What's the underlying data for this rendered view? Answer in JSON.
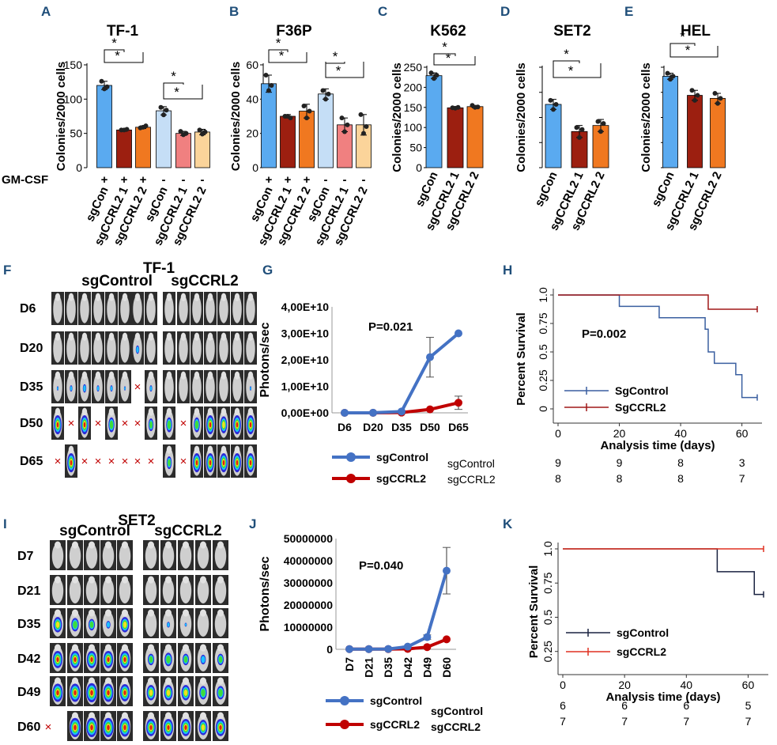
{
  "chart_data": [
    {
      "panel": "A",
      "type": "bar",
      "title": "TF-1",
      "ylabel": "Colonies/2000 cells",
      "ylim": [
        0,
        150
      ],
      "yticks": [
        "0",
        "50",
        "100",
        "150"
      ],
      "categories": [
        "sgCon",
        "sgCCRL2 1",
        "sgCCRL2 2",
        "sgCon",
        "sgCCRL2 1",
        "sgCCRL2 2"
      ],
      "condition_label": "GM-CSF",
      "condition": [
        "+",
        "+",
        "+",
        "-",
        "-",
        "-"
      ],
      "values": [
        120,
        55,
        59,
        83,
        50,
        52
      ],
      "errors": [
        6,
        2,
        2,
        6,
        3,
        4
      ],
      "points": [
        [
          126,
          115,
          118
        ],
        [
          55,
          55,
          56
        ],
        [
          58,
          59,
          61
        ],
        [
          88,
          77,
          84
        ],
        [
          53,
          48,
          50
        ],
        [
          55,
          49,
          52
        ]
      ],
      "colors": [
        "#5aaaf0",
        "#9c1f10",
        "#f07820",
        "#c5def6",
        "#f08080",
        "#fbd49a"
      ],
      "significance": [
        "*",
        "*",
        "*",
        "*"
      ]
    },
    {
      "panel": "B",
      "type": "bar",
      "title": "F36P",
      "ylabel": "Colonies/2000 cells",
      "ylim": [
        0,
        60
      ],
      "yticks": [
        "0",
        "20",
        "40",
        "60"
      ],
      "categories": [
        "sgCon",
        "sgCCRL2 1",
        "sgCCRL2 2",
        "sgCon",
        "sgCCRL2 1",
        "sgCCRL2 2"
      ],
      "condition": [
        "+",
        "+",
        "+",
        "-",
        "-",
        "-"
      ],
      "values": [
        49,
        30,
        33,
        43,
        25,
        25
      ],
      "errors": [
        5,
        1,
        4,
        3,
        4,
        6
      ],
      "points": [
        [
          54,
          45,
          48
        ],
        [
          30,
          30,
          29
        ],
        [
          36,
          29,
          33
        ],
        [
          45,
          40,
          43
        ],
        [
          29,
          21,
          25
        ],
        [
          31,
          20,
          24
        ]
      ],
      "colors": [
        "#5aaaf0",
        "#9c1f10",
        "#f07820",
        "#c5def6",
        "#f08080",
        "#fbd49a"
      ],
      "significance": [
        "*",
        "*",
        "*",
        "*"
      ]
    },
    {
      "panel": "C",
      "type": "bar",
      "title": "K562",
      "ylabel": "Colonies/2000 cells",
      "ylim": [
        0,
        250
      ],
      "yticks": [
        "0",
        "50",
        "100",
        "150",
        "200",
        "250"
      ],
      "categories": [
        "sgCon",
        "sgCCRL2 1",
        "sgCCRL2 2"
      ],
      "values": [
        229,
        149,
        152
      ],
      "errors": [
        7,
        2,
        3
      ],
      "points": [
        [
          236,
          222,
          230
        ],
        [
          149,
          148,
          150
        ],
        [
          155,
          150,
          151
        ]
      ],
      "colors": [
        "#5aaaf0",
        "#9c1f10",
        "#f07820"
      ],
      "significance": [
        "*",
        "*"
      ]
    },
    {
      "panel": "D",
      "type": "bar",
      "title": "SET2",
      "ylabel": "Colonies/2000 cells",
      "ylim": [
        0,
        100
      ],
      "categories": [
        "sgCon",
        "sgCCRL2 1",
        "sgCCRL2 2"
      ],
      "values": [
        63,
        36,
        42
      ],
      "errors": [
        5,
        6,
        6
      ],
      "points": [
        [
          67,
          58,
          63
        ],
        [
          40,
          30,
          38
        ],
        [
          46,
          36,
          44
        ]
      ],
      "colors": [
        "#5aaaf0",
        "#9c1f10",
        "#f07820"
      ],
      "significance": [
        "*",
        "*"
      ]
    },
    {
      "panel": "E",
      "type": "bar",
      "title": "HEL",
      "ylabel": "Colonies/2000 cells",
      "ylim": [
        0,
        100
      ],
      "categories": [
        "sgCon",
        "sgCCRL2 1",
        "sgCCRL2 2"
      ],
      "values": [
        91,
        72,
        69
      ],
      "errors": [
        3,
        5,
        5
      ],
      "points": [
        [
          94,
          88,
          91
        ],
        [
          77,
          67,
          72
        ],
        [
          74,
          64,
          69
        ]
      ],
      "colors": [
        "#5aaaf0",
        "#9c1f10",
        "#f07820"
      ],
      "significance": [
        "*",
        "*"
      ]
    },
    {
      "panel": "F",
      "type": "image-grid",
      "title": "TF-1",
      "groups": [
        "sgControl",
        "sgCCRL2"
      ],
      "rows": [
        "D6",
        "D20",
        "D35",
        "D50",
        "D65"
      ]
    },
    {
      "panel": "G",
      "type": "line",
      "ylabel": "Photons/sec",
      "x": [
        "D6",
        "D20",
        "D35",
        "D50",
        "D65"
      ],
      "ylim": [
        0,
        40000000000
      ],
      "yticks": [
        "0,00E+00",
        "1,00E+10",
        "2,00E+10",
        "3,00E+10",
        "4,00E+10"
      ],
      "series": [
        {
          "name": "sgControl",
          "color": "#4472c4",
          "values": [
            10000000,
            20000000,
            500000000,
            21000000000,
            30000000000
          ],
          "errors": [
            0,
            0,
            0,
            7500000000,
            0
          ]
        },
        {
          "name": "sgCCRL2",
          "color": "#c00000",
          "values": [
            5000000,
            10000000,
            100000000,
            1300000000,
            3800000000
          ],
          "errors": [
            0,
            0,
            0,
            0,
            2500000000
          ]
        }
      ],
      "annotation": "P=0.021"
    },
    {
      "panel": "H",
      "type": "line",
      "ylabel": "Percent Survival",
      "xlabel": "Analysis time (days)",
      "xlim": [
        0,
        65
      ],
      "ylim": [
        0,
        1
      ],
      "xticks": [
        "0",
        "20",
        "40",
        "60"
      ],
      "yticks": [
        "0",
        "0.25",
        "0.5",
        "0.75",
        "1.0"
      ],
      "series": [
        {
          "name": "SgControl",
          "color": "#3a5fa0",
          "x": [
            0,
            20,
            33,
            48,
            49,
            51,
            58,
            60,
            65
          ],
          "values": [
            1.0,
            0.9,
            0.8,
            0.7,
            0.5,
            0.4,
            0.3,
            0.1,
            0.1
          ]
        },
        {
          "name": "SgCCRL2",
          "color": "#a01818",
          "x": [
            0,
            49,
            65
          ],
          "values": [
            1.0,
            0.875,
            0.875
          ]
        }
      ],
      "annotation": "P=0.002",
      "risk_table": {
        "sgControl": [
          "9",
          "9",
          "8",
          "3"
        ],
        "sgCCRL2": [
          "8",
          "8",
          "8",
          "7"
        ]
      }
    },
    {
      "panel": "I",
      "type": "image-grid",
      "title": "SET2",
      "groups": [
        "sgControl",
        "sgCCRL2"
      ],
      "rows": [
        "D7",
        "D21",
        "D35",
        "D42",
        "D49",
        "D60"
      ]
    },
    {
      "panel": "J",
      "type": "line",
      "ylabel": "Photons/sec",
      "x": [
        "D7",
        "D21",
        "D35",
        "D42",
        "D49",
        "D60"
      ],
      "ylim": [
        0,
        50000000
      ],
      "yticks": [
        "0",
        "10000000",
        "20000000",
        "30000000",
        "40000000",
        "50000000"
      ],
      "series": [
        {
          "name": "sgControl",
          "color": "#4472c4",
          "values": [
            100000,
            100000,
            150000,
            1200000,
            5500000,
            35500000
          ],
          "errors": [
            0,
            0,
            0,
            0,
            1000000,
            10500000
          ]
        },
        {
          "name": "sgCCRL2",
          "color": "#c00000",
          "values": [
            100000,
            100000,
            100000,
            200000,
            1000000,
            4500000
          ],
          "errors": [
            0,
            0,
            0,
            0,
            0,
            0
          ]
        }
      ],
      "annotation": "P=0.040"
    },
    {
      "panel": "K",
      "type": "line",
      "ylabel": "Percent Survival",
      "xlabel": "Analysis time (days)",
      "xlim": [
        0,
        65
      ],
      "ylim": [
        0.15,
        1.0
      ],
      "xticks": [
        "0",
        "20",
        "40",
        "60"
      ],
      "yticks": [
        "0.25",
        "0.5",
        "0.75",
        "1.0"
      ],
      "series": [
        {
          "name": "sgControl",
          "color": "#1a2240",
          "x": [
            0,
            50,
            62,
            65
          ],
          "values": [
            1.0,
            0.833,
            0.667,
            0.667
          ]
        },
        {
          "name": "sgCCRL2",
          "color": "#e03020",
          "x": [
            0,
            65
          ],
          "values": [
            1.0,
            1.0
          ]
        }
      ],
      "risk_table": {
        "sgControl": [
          "6",
          "6",
          "6",
          "5"
        ],
        "sgCCRL2": [
          "7",
          "7",
          "7",
          "7"
        ]
      }
    }
  ],
  "labels": {
    "F": {
      "panel": "F",
      "title": "TF-1",
      "group1": "sgControl",
      "group2": "sgCCRL2"
    },
    "G": {
      "panel": "G"
    },
    "H": {
      "panel": "H"
    },
    "I": {
      "panel": "I",
      "title": "SET2",
      "group1": "sgControl",
      "group2": "sgCCRL2"
    },
    "J": {
      "panel": "J",
      "risk_label1": "sgControl",
      "risk_label2": "sgCCRL2"
    },
    "K": {
      "panel": "K"
    }
  },
  "colors": {
    "accent": "#1f4e79",
    "xmark": "#c00000"
  }
}
